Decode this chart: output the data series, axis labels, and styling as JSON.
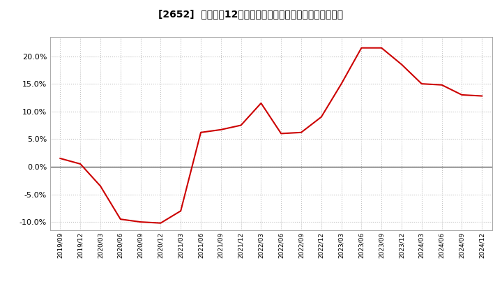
{
  "title": "[2652]  売上高の12か月移動合計の対前年同期増減率の推移",
  "line_color": "#cc0000",
  "background_color": "#ffffff",
  "plot_bg_color": "#ffffff",
  "grid_color": "#c0c0c0",
  "ylim": [
    -0.115,
    0.235
  ],
  "yticks": [
    -0.1,
    -0.05,
    0.0,
    0.05,
    0.1,
    0.15,
    0.2
  ],
  "dates": [
    "2019/09",
    "2019/12",
    "2020/03",
    "2020/06",
    "2020/09",
    "2020/12",
    "2021/03",
    "2021/06",
    "2021/09",
    "2021/12",
    "2022/03",
    "2022/06",
    "2022/09",
    "2022/12",
    "2023/03",
    "2023/06",
    "2023/09",
    "2023/12",
    "2024/03",
    "2024/06",
    "2024/09",
    "2024/12"
  ],
  "values": [
    0.015,
    0.005,
    -0.035,
    -0.095,
    -0.1,
    -0.102,
    -0.08,
    0.062,
    0.067,
    0.075,
    0.115,
    0.06,
    0.062,
    0.09,
    0.15,
    0.215,
    0.215,
    0.185,
    0.15,
    0.148,
    0.13,
    0.128
  ]
}
